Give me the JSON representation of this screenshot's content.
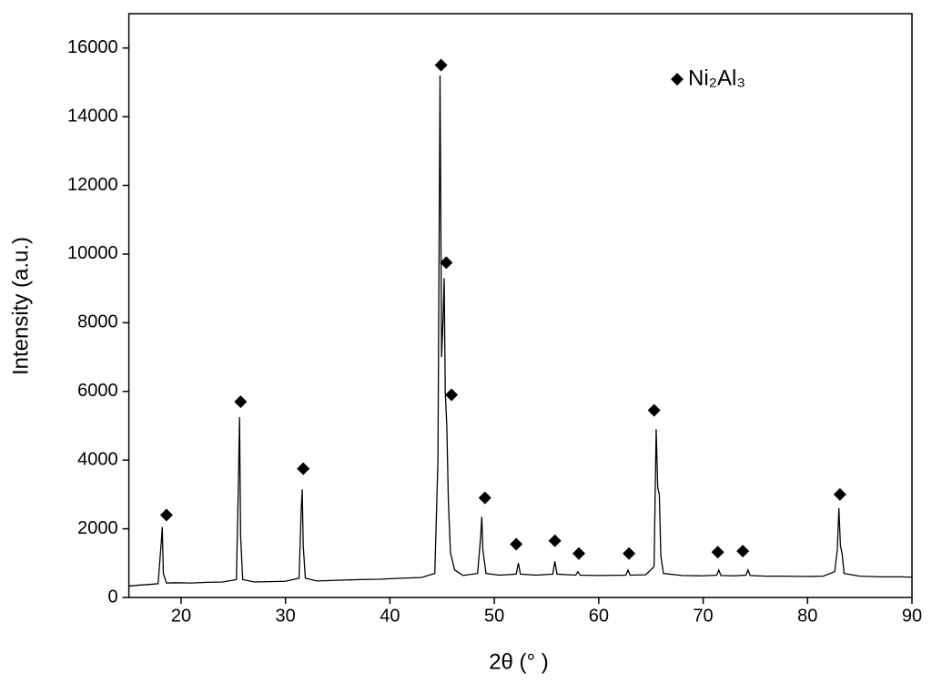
{
  "chart_data": {
    "type": "line",
    "xlabel": "2θ (° )",
    "ylabel": "Intensity (a.u.)",
    "xlim": [
      15,
      90
    ],
    "ylim": [
      0,
      17000
    ],
    "xticks": [
      20,
      30,
      40,
      50,
      60,
      70,
      80,
      90
    ],
    "yticks": [
      0,
      2000,
      4000,
      6000,
      8000,
      10000,
      12000,
      14000,
      16000
    ],
    "legend": "upper right",
    "series": [
      {
        "type": "line",
        "color": "#000000",
        "x": [
          15,
          16,
          17,
          17.8,
          18.1,
          18.2,
          18.3,
          18.6,
          19.5,
          21,
          22.5,
          24,
          25.3,
          25.5,
          25.6,
          25.7,
          25.9,
          27,
          28.5,
          30,
          31.3,
          31.5,
          31.6,
          31.7,
          31.9,
          33,
          35,
          37,
          39,
          41,
          43,
          44.3,
          44.6,
          44.8,
          44.95,
          45.1,
          45.2,
          45.3,
          45.45,
          45.6,
          45.8,
          46.2,
          47,
          48.4,
          48.7,
          48.8,
          48.9,
          49.2,
          50.5,
          52.1,
          52.3,
          52.5,
          54,
          55.6,
          55.8,
          56,
          57.8,
          58,
          58.2,
          60,
          62.6,
          62.8,
          63,
          64.5,
          65.3,
          65.5,
          65.65,
          65.8,
          65.95,
          66.2,
          68,
          70,
          71.3,
          71.5,
          71.7,
          73,
          74.1,
          74.3,
          74.5,
          76,
          78,
          80,
          81.5,
          82.6,
          82.85,
          83.0,
          83.15,
          83.3,
          83.5,
          85,
          87,
          89,
          90
        ],
        "values": [
          330,
          360,
          380,
          400,
          1600,
          2050,
          700,
          420,
          430,
          420,
          440,
          450,
          520,
          3500,
          5250,
          1800,
          520,
          450,
          460,
          470,
          560,
          2500,
          3150,
          1500,
          560,
          480,
          500,
          520,
          530,
          560,
          580,
          700,
          4000,
          15200,
          7000,
          8200,
          9300,
          6000,
          5000,
          2800,
          1300,
          800,
          640,
          700,
          1800,
          2350,
          1400,
          700,
          650,
          680,
          1000,
          680,
          650,
          680,
          1050,
          680,
          650,
          750,
          650,
          640,
          650,
          800,
          650,
          660,
          900,
          4900,
          3200,
          3000,
          1200,
          700,
          640,
          630,
          650,
          800,
          640,
          630,
          650,
          800,
          640,
          620,
          620,
          610,
          620,
          750,
          1400,
          2600,
          1500,
          1300,
          700,
          620,
          600,
          600,
          590
        ]
      },
      {
        "type": "scatter",
        "name": "Ni₂Al₃",
        "color": "#000000",
        "x": [
          18.6,
          25.7,
          31.7,
          44.9,
          45.4,
          45.9,
          49.1,
          52.1,
          55.8,
          58.1,
          62.9,
          65.3,
          71.4,
          73.8,
          83.1
        ],
        "values": [
          2400,
          5700,
          3750,
          15500,
          9750,
          5900,
          2900,
          1550,
          1650,
          1280,
          1280,
          5450,
          1320,
          1350,
          3000
        ]
      }
    ]
  }
}
